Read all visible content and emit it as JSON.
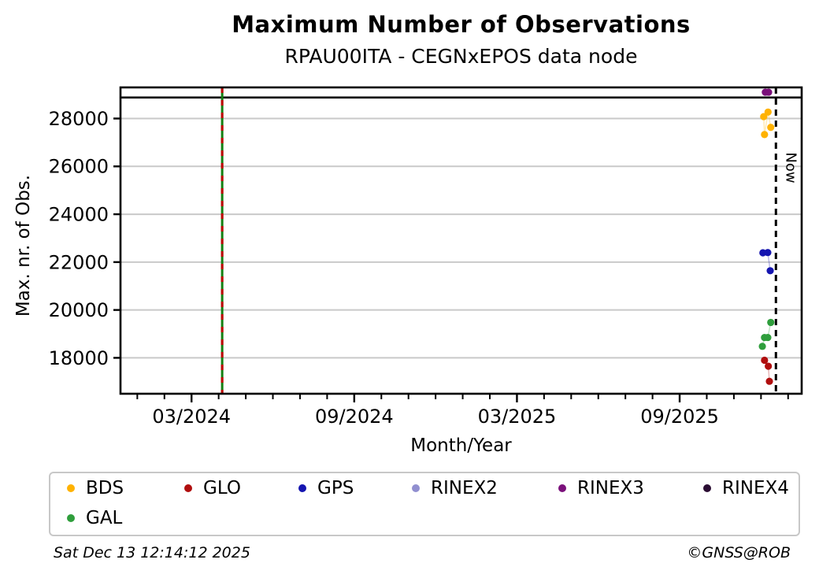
{
  "header": {
    "title": "Maximum Number of Observations",
    "subtitle": "RPAU00ITA - CEGNxEPOS data node"
  },
  "chart_data": {
    "type": "scatter",
    "title": "Maximum Number of Observations",
    "subtitle": "RPAU00ITA - CEGNxEPOS data node",
    "xlabel": "Month/Year",
    "ylabel": "Max. nr. of Obs.",
    "x_encoding": "months since January 2024 (0 = 01/2024)",
    "xlim": [
      -0.62,
      24.5
    ],
    "ylim": [
      16500,
      29300
    ],
    "grid": "horizontal-only",
    "legend_position": "bottom",
    "yticks": [
      18000,
      20000,
      22000,
      24000,
      26000,
      28000
    ],
    "xticks_major": [
      {
        "value": 2,
        "label": "03/2024"
      },
      {
        "value": 8,
        "label": "09/2024"
      },
      {
        "value": 14,
        "label": "03/2025"
      },
      {
        "value": 20,
        "label": "09/2025"
      }
    ],
    "xticks_minor": [
      0,
      1,
      3,
      4,
      5,
      6,
      7,
      9,
      10,
      11,
      12,
      13,
      15,
      16,
      17,
      18,
      19,
      21,
      22,
      23,
      24
    ],
    "annotations": {
      "now_line": {
        "x": 23.55,
        "label": "Now",
        "style": "black-dashed"
      },
      "upper_hline": {
        "y": 28880,
        "style": "black-solid"
      },
      "event_vline": {
        "x": 3.13,
        "style": "green-solid-with-red-dashes",
        "color_main": "#128012",
        "color_dash": "#c00000"
      }
    },
    "series": [
      {
        "name": "BDS",
        "color": "#FFB200",
        "points": [
          [
            23.1,
            28080
          ],
          [
            23.13,
            27330
          ],
          [
            23.26,
            28270
          ],
          [
            23.36,
            27630
          ]
        ]
      },
      {
        "name": "GLO",
        "color": "#B00E0E",
        "points": [
          [
            23.13,
            17900
          ],
          [
            23.27,
            17650
          ],
          [
            23.31,
            17020
          ]
        ]
      },
      {
        "name": "GPS",
        "color": "#1515B0",
        "points": [
          [
            23.07,
            22390
          ],
          [
            23.25,
            22400
          ],
          [
            23.34,
            21640
          ]
        ]
      },
      {
        "name": "RINEX2",
        "color": "#918FD0",
        "points": []
      },
      {
        "name": "RINEX3",
        "color": "#7B107B",
        "points": [
          [
            23.16,
            29100
          ],
          [
            23.28,
            29100
          ]
        ]
      },
      {
        "name": "RINEX4",
        "color": "#2B0D33",
        "points": []
      },
      {
        "name": "GAL",
        "color": "#2F9E3C",
        "points": [
          [
            23.05,
            18480
          ],
          [
            23.13,
            18850
          ],
          [
            23.25,
            18850
          ],
          [
            23.36,
            19480
          ]
        ]
      }
    ]
  },
  "legend": {
    "items": [
      {
        "label": "BDS",
        "series": "BDS"
      },
      {
        "label": "GLO",
        "series": "GLO"
      },
      {
        "label": "GPS",
        "series": "GPS"
      },
      {
        "label": "RINEX2",
        "series": "RINEX2"
      },
      {
        "label": "RINEX3",
        "series": "RINEX3"
      },
      {
        "label": "RINEX4",
        "series": "RINEX4"
      },
      {
        "label": "GAL",
        "series": "GAL"
      }
    ]
  },
  "footer": {
    "timestamp": "Sat Dec 13 12:14:12 2025",
    "credit": "©GNSS@ROB"
  }
}
